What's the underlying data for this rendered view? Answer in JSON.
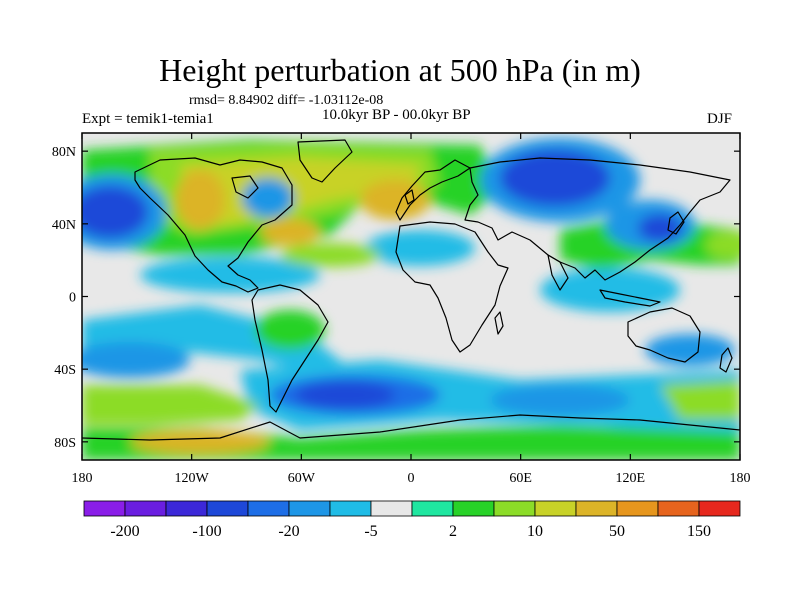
{
  "title": "Height perturbation at 500 hPa (in m)",
  "stats": "rmsd= 8.84902 diff= -1.03112e-08",
  "experiment": "Expt = temik1-temia1",
  "period": "10.0kyr BP - 00.0kyr BP",
  "season": "DJF",
  "map": {
    "lat_range": [
      -90,
      90
    ],
    "lon_range": [
      -180,
      180
    ],
    "lat_ticks": [
      {
        "value": 80,
        "label": "80N"
      },
      {
        "value": 40,
        "label": "40N"
      },
      {
        "value": 0,
        "label": "0"
      },
      {
        "value": -40,
        "label": "40S"
      },
      {
        "value": -80,
        "label": "80S"
      }
    ],
    "lon_ticks": [
      {
        "value": -180,
        "label": "180"
      },
      {
        "value": -120,
        "label": "120W"
      },
      {
        "value": -60,
        "label": "60W"
      },
      {
        "value": 0,
        "label": "0"
      },
      {
        "value": 60,
        "label": "60E"
      },
      {
        "value": 120,
        "label": "120E"
      },
      {
        "value": 180,
        "label": "180"
      }
    ]
  },
  "colorbar": {
    "colors": [
      "#8a1ee8",
      "#6a1ee0",
      "#3c28d8",
      "#1e48d8",
      "#1e6ee6",
      "#1e96e6",
      "#20bce6",
      "#e8e8e8",
      "#20e6a0",
      "#28d228",
      "#8cdc28",
      "#c8d228",
      "#dcb428",
      "#e6961e",
      "#e6641e",
      "#e6281e"
    ],
    "labels": [
      {
        "after_box": 1,
        "text": "-200"
      },
      {
        "after_box": 3,
        "text": "-100"
      },
      {
        "after_box": 5,
        "text": "-20"
      },
      {
        "after_box": 7,
        "text": "-5"
      },
      {
        "after_box": 9,
        "text": "2"
      },
      {
        "after_box": 11,
        "text": "10"
      },
      {
        "after_box": 13,
        "text": "50"
      },
      {
        "after_box": 15,
        "text": "150"
      }
    ]
  }
}
